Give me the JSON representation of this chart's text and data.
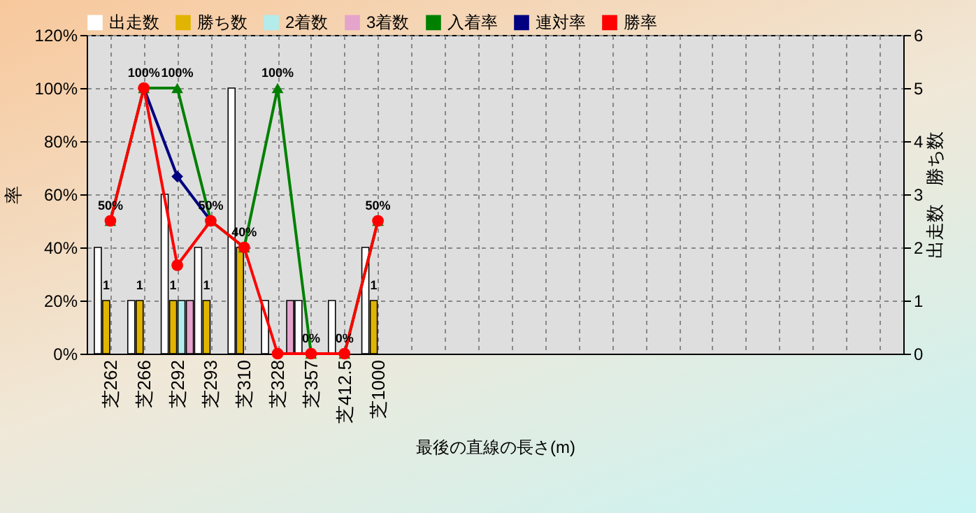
{
  "chart_data": {
    "type": "bar",
    "xlabel": "最後の直線の長さ(m)",
    "ylabel": "率",
    "y2label": "出走数　勝ち数",
    "categories": [
      "芝262",
      "芝266",
      "芝292",
      "芝293",
      "芝310",
      "芝328",
      "芝357",
      "芝412.5",
      "芝1000",
      null,
      null,
      null,
      null,
      null,
      null,
      null,
      null,
      null,
      null,
      null,
      null,
      null,
      null,
      null
    ],
    "series": [
      {
        "name": "出走数",
        "axis": "y2",
        "color": "#ffffff",
        "values": [
          2,
          1,
          3,
          2,
          5,
          1,
          1,
          1,
          2,
          null,
          null,
          null,
          null,
          null,
          null,
          null,
          null,
          null,
          null,
          null,
          null,
          null,
          null,
          null
        ]
      },
      {
        "name": "勝ち数",
        "axis": "y2",
        "color": "#e0b400",
        "values": [
          1,
          1,
          1,
          1,
          2,
          0,
          0,
          0,
          1,
          null,
          null,
          null,
          null,
          null,
          null,
          null,
          null,
          null,
          null,
          null,
          null,
          null,
          null,
          null
        ],
        "value_labels": [
          "1",
          "1",
          "1",
          "1",
          null,
          null,
          null,
          null,
          "1",
          null,
          null,
          null,
          null,
          null,
          null,
          null,
          null,
          null,
          null,
          null,
          null,
          null,
          null,
          null
        ]
      },
      {
        "name": "2着数",
        "axis": "y2",
        "color": "#b4ecec",
        "values": [
          0,
          0,
          1,
          0,
          0,
          0,
          0,
          0,
          0,
          null,
          null,
          null,
          null,
          null,
          null,
          null,
          null,
          null,
          null,
          null,
          null,
          null,
          null,
          null
        ]
      },
      {
        "name": "3着数",
        "axis": "y2",
        "color": "#e4a4cc",
        "values": [
          0,
          0,
          1,
          0,
          0,
          1,
          0,
          0,
          0,
          null,
          null,
          null,
          null,
          null,
          null,
          null,
          null,
          null,
          null,
          null,
          null,
          null,
          null,
          null
        ]
      },
      {
        "name": "入着率",
        "type": "line",
        "marker": "triangle",
        "color": "#008000",
        "values": [
          50,
          100,
          100,
          50,
          40,
          100,
          0,
          0,
          50,
          null,
          null,
          null,
          null,
          null,
          null,
          null,
          null,
          null,
          null,
          null,
          null,
          null,
          null,
          null
        ],
        "value_labels": [
          "50%",
          "100%",
          "100%",
          "50%",
          "40%",
          "100%",
          "0%",
          "0%",
          "50%",
          null,
          null,
          null,
          null,
          null,
          null,
          null,
          null,
          null,
          null,
          null,
          null,
          null,
          null,
          null
        ]
      },
      {
        "name": "連対率",
        "type": "line",
        "marker": "diamond",
        "color": "#000080",
        "values": [
          null,
          100,
          66.7,
          50,
          null,
          null,
          null,
          null,
          null,
          null,
          null,
          null,
          null,
          null,
          null,
          null,
          null,
          null,
          null,
          null,
          null,
          null,
          null,
          null
        ]
      },
      {
        "name": "勝率",
        "type": "line",
        "marker": "circle",
        "color": "#ff0000",
        "values": [
          50,
          100,
          33.3,
          50,
          40,
          0,
          0,
          0,
          50,
          null,
          null,
          null,
          null,
          null,
          null,
          null,
          null,
          null,
          null,
          null,
          null,
          null,
          null,
          null
        ]
      }
    ],
    "ylim": [
      0,
      120
    ],
    "yticks": [
      {
        "value": 0,
        "label": "0%"
      },
      {
        "value": 20,
        "label": "20%"
      },
      {
        "value": 40,
        "label": "40%"
      },
      {
        "value": 60,
        "label": "60%"
      },
      {
        "value": 80,
        "label": "80%"
      },
      {
        "value": 100,
        "label": "100%"
      },
      {
        "value": 120,
        "label": "120%"
      }
    ],
    "y2lim": [
      0,
      6
    ],
    "y2ticks": [
      0,
      1,
      2,
      3,
      4,
      5,
      6
    ],
    "grid": true,
    "legend": "top"
  }
}
